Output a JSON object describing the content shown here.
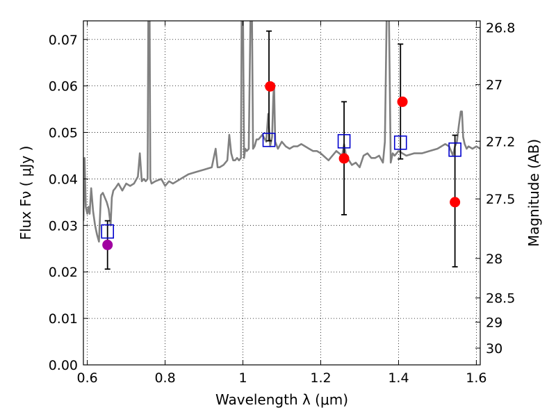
{
  "chart_data": {
    "type": "scatter",
    "xlabel": "Wavelength  λ (μm)",
    "ylabel": "Flux  Fν ( μJy )",
    "y2label": "Magnitude (AB)",
    "xlim": [
      0.59,
      1.61
    ],
    "ylim": [
      0.0,
      0.074
    ],
    "grid": true,
    "x_ticks": [
      {
        "value": 0.6,
        "label": "0.6"
      },
      {
        "value": 0.8,
        "label": "0.8"
      },
      {
        "value": 1.0,
        "label": "1"
      },
      {
        "value": 1.2,
        "label": "1.2"
      },
      {
        "value": 1.4,
        "label": "1.4"
      },
      {
        "value": 1.6,
        "label": "1.6"
      }
    ],
    "y_ticks": [
      {
        "value": 0.0,
        "label": "0.00"
      },
      {
        "value": 0.01,
        "label": "0.01"
      },
      {
        "value": 0.02,
        "label": "0.02"
      },
      {
        "value": 0.03,
        "label": "0.03"
      },
      {
        "value": 0.04,
        "label": "0.04"
      },
      {
        "value": 0.05,
        "label": "0.05"
      },
      {
        "value": 0.06,
        "label": "0.06"
      },
      {
        "value": 0.07,
        "label": "0.07"
      }
    ],
    "y2_ticks": [
      {
        "flux": 0.0726,
        "label": "26.8"
      },
      {
        "flux": 0.0603,
        "label": "27"
      },
      {
        "flux": 0.0481,
        "label": "27.2"
      },
      {
        "flux": 0.0357,
        "label": "27.5"
      },
      {
        "flux": 0.0229,
        "label": "28"
      },
      {
        "flux": 0.0144,
        "label": "28.5"
      },
      {
        "flux": 0.0092,
        "label": "29"
      },
      {
        "flux": 0.0036,
        "label": "30"
      }
    ],
    "series": [
      {
        "type": "line",
        "color": "#808080",
        "x": [
          0.59,
          0.593,
          0.596,
          0.6,
          0.603,
          0.606,
          0.61,
          0.615,
          0.62,
          0.625,
          0.63,
          0.635,
          0.64,
          0.645,
          0.65,
          0.655,
          0.66,
          0.663,
          0.667,
          0.672,
          0.68,
          0.69,
          0.7,
          0.71,
          0.72,
          0.73,
          0.735,
          0.74,
          0.745,
          0.75,
          0.755,
          0.757,
          0.76,
          0.762,
          0.765,
          0.775,
          0.79,
          0.8,
          0.81,
          0.82,
          0.84,
          0.86,
          0.88,
          0.9,
          0.92,
          0.93,
          0.935,
          0.94,
          0.95,
          0.96,
          0.965,
          0.97,
          0.975,
          0.98,
          0.985,
          0.99,
          0.995,
          0.997,
          1.0,
          1.003,
          1.006,
          1.01,
          1.015,
          1.02,
          1.023,
          1.026,
          1.03,
          1.035,
          1.04,
          1.05,
          1.06,
          1.065,
          1.07,
          1.075,
          1.078,
          1.08,
          1.083,
          1.09,
          1.1,
          1.11,
          1.12,
          1.13,
          1.14,
          1.15,
          1.16,
          1.17,
          1.18,
          1.19,
          1.2,
          1.22,
          1.24,
          1.255,
          1.26,
          1.265,
          1.28,
          1.29,
          1.3,
          1.31,
          1.32,
          1.33,
          1.34,
          1.35,
          1.36,
          1.365,
          1.37,
          1.375,
          1.38,
          1.385,
          1.39,
          1.4,
          1.42,
          1.44,
          1.46,
          1.48,
          1.5,
          1.52,
          1.53,
          1.54,
          1.545,
          1.55,
          1.555,
          1.56,
          1.563,
          1.566,
          1.57,
          1.575,
          1.58,
          1.59,
          1.6,
          1.61
        ],
        "y": [
          0.031,
          0.0445,
          0.034,
          0.0325,
          0.034,
          0.0325,
          0.038,
          0.033,
          0.03,
          0.028,
          0.0265,
          0.0365,
          0.037,
          0.036,
          0.035,
          0.0335,
          0.03,
          0.036,
          0.0375,
          0.038,
          0.039,
          0.0375,
          0.039,
          0.0385,
          0.039,
          0.0405,
          0.0455,
          0.0395,
          0.04,
          0.0395,
          0.04,
          0.078,
          0.078,
          0.04,
          0.039,
          0.0395,
          0.04,
          0.0385,
          0.0395,
          0.039,
          0.04,
          0.041,
          0.0415,
          0.042,
          0.0425,
          0.0465,
          0.0425,
          0.0425,
          0.043,
          0.044,
          0.0495,
          0.0455,
          0.044,
          0.044,
          0.0445,
          0.044,
          0.0445,
          0.078,
          0.078,
          0.0445,
          0.0465,
          0.046,
          0.0465,
          0.078,
          0.078,
          0.0465,
          0.047,
          0.0485,
          0.0485,
          0.0495,
          0.048,
          0.054,
          0.047,
          0.049,
          0.0575,
          0.0605,
          0.048,
          0.0465,
          0.048,
          0.047,
          0.0465,
          0.047,
          0.047,
          0.0475,
          0.047,
          0.0465,
          0.046,
          0.046,
          0.0455,
          0.044,
          0.046,
          0.045,
          0.0475,
          0.045,
          0.043,
          0.0435,
          0.0425,
          0.045,
          0.0455,
          0.0445,
          0.0445,
          0.045,
          0.0435,
          0.048,
          0.078,
          0.078,
          0.0435,
          0.0455,
          0.045,
          0.046,
          0.045,
          0.0455,
          0.0455,
          0.046,
          0.0465,
          0.0475,
          0.047,
          0.045,
          0.047,
          0.048,
          0.0515,
          0.0545,
          0.0545,
          0.049,
          0.0475,
          0.0465,
          0.047,
          0.0465,
          0.047,
          0.0465
        ]
      },
      {
        "type": "scatter",
        "marker": "circle",
        "color": "#ff0000",
        "x": [
          1.07,
          1.26,
          1.41,
          1.545
        ],
        "y": [
          0.0599,
          0.0444,
          0.0566,
          0.035
        ]
      },
      {
        "type": "scatter",
        "marker": "circle",
        "color": "#a000a0",
        "x": [
          0.652
        ],
        "y": [
          0.0258
        ]
      },
      {
        "type": "scatter",
        "marker": "square",
        "color": "#0000cc",
        "x": [
          0.652,
          1.067,
          1.26,
          1.405,
          1.545
        ],
        "y": [
          0.0287,
          0.0484,
          0.0481,
          0.0478,
          0.0463
        ]
      },
      {
        "type": "errorbar",
        "color": "#000000",
        "x": [
          0.652,
          1.067,
          1.26,
          1.405,
          1.545
        ],
        "ylow": [
          0.0206,
          0.0482,
          0.0323,
          0.0443,
          0.0211
        ],
        "yhigh": [
          0.031,
          0.0718,
          0.0566,
          0.069,
          0.0494
        ]
      }
    ]
  }
}
